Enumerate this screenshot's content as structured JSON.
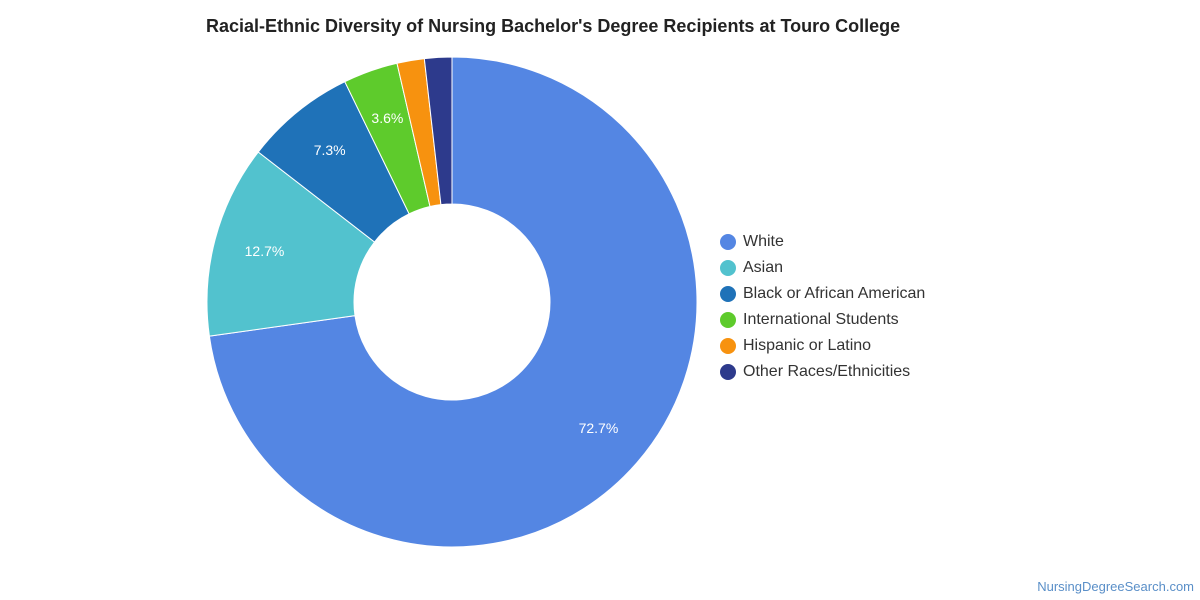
{
  "chart_data": {
    "type": "pie",
    "title": "Racial-Ethnic Diversity of Nursing Bachelor's Degree Recipients at Touro College",
    "donut": true,
    "legend_position": "right",
    "slices": [
      {
        "label": "White",
        "value": 72.7,
        "display": "72.7%",
        "color": "#5486e3"
      },
      {
        "label": "Asian",
        "value": 12.7,
        "display": "12.7%",
        "color": "#52c2ce"
      },
      {
        "label": "Black or African American",
        "value": 7.3,
        "display": "7.3%",
        "color": "#1f72b8"
      },
      {
        "label": "International Students",
        "value": 3.6,
        "display": "3.6%",
        "color": "#5ecb2c"
      },
      {
        "label": "Hispanic or Latino",
        "value": 1.8,
        "display": "",
        "color": "#f7920f"
      },
      {
        "label": "Other Races/Ethnicities",
        "value": 1.8,
        "display": "",
        "color": "#2d3a8c"
      }
    ]
  },
  "source": "NursingDegreeSearch.com"
}
